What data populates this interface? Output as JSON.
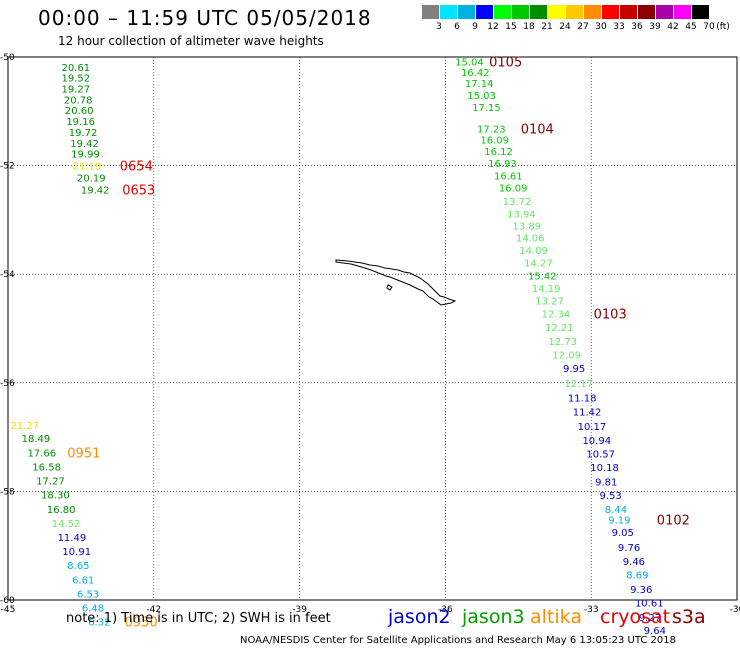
{
  "header": {
    "title": "00:00 – 11:59 UTC 05/05/2018",
    "subtitle": "12 hour collection of altimeter wave heights"
  },
  "colorbar": {
    "labels": [
      "3",
      "6",
      "9",
      "12",
      "15",
      "18",
      "21",
      "24",
      "27",
      "30",
      "33",
      "36",
      "39",
      "42",
      "45",
      "70"
    ],
    "unit": "(ft)",
    "colors": [
      "#808080",
      "#00e5ff",
      "#00b0e0",
      "#0000ff",
      "#00ff00",
      "#00c800",
      "#008c00",
      "#ffff00",
      "#ffc800",
      "#ff8c00",
      "#ff0000",
      "#c80000",
      "#8c0000",
      "#aa00aa",
      "#ff00ff",
      "#000000"
    ]
  },
  "map": {
    "lat_labels": [
      "-50",
      "-52",
      "-54",
      "-56",
      "-58",
      "-60"
    ],
    "lon_labels": [
      "-45",
      "-42",
      "-39",
      "-36",
      "-33",
      "-30"
    ],
    "lat_range": [
      -60,
      -50
    ],
    "lon_range": [
      -45,
      -30
    ],
    "grid": "dotted"
  },
  "tracks": [
    {
      "name": "track-0654-0653",
      "readings": [
        {
          "v": "20.61",
          "c": "#008c00",
          "lon": -43.9,
          "lat": -50.18
        },
        {
          "v": "19.52",
          "c": "#008c00",
          "lon": -43.9,
          "lat": -50.38
        },
        {
          "v": "19.27",
          "c": "#008c00",
          "lon": -43.9,
          "lat": -50.58
        },
        {
          "v": "20.78",
          "c": "#008c00",
          "lon": -43.85,
          "lat": -50.78
        },
        {
          "v": "20.60",
          "c": "#008c00",
          "lon": -43.83,
          "lat": -50.98
        },
        {
          "v": "19.16",
          "c": "#008c00",
          "lon": -43.8,
          "lat": -51.18
        },
        {
          "v": "19.72",
          "c": "#008c00",
          "lon": -43.75,
          "lat": -51.38
        },
        {
          "v": "19.42",
          "c": "#008c00",
          "lon": -43.72,
          "lat": -51.58
        },
        {
          "v": "19.99",
          "c": "#008c00",
          "lon": -43.7,
          "lat": -51.78
        },
        {
          "v": "21.19",
          "c": "#e6e600",
          "lon": -43.67,
          "lat": -52.0
        },
        {
          "v": "20.19",
          "c": "#008c00",
          "lon": -43.58,
          "lat": -52.22
        },
        {
          "v": "19.42",
          "c": "#008c00",
          "lon": -43.5,
          "lat": -52.44
        }
      ],
      "labels": [
        {
          "t": "0654",
          "c": "#e60000",
          "lon": -42.7,
          "lat": -52.0
        },
        {
          "t": "0653",
          "c": "#e60000",
          "lon": -42.65,
          "lat": -52.44
        }
      ]
    },
    {
      "name": "track-0105-0102",
      "readings": [
        {
          "v": "15.04",
          "c": "#00c800",
          "lon": -35.8,
          "lat": -50.08
        },
        {
          "v": "16.42",
          "c": "#00c800",
          "lon": -35.68,
          "lat": -50.28
        },
        {
          "v": "17.14",
          "c": "#00c800",
          "lon": -35.6,
          "lat": -50.48
        },
        {
          "v": "15.03",
          "c": "#00c800",
          "lon": -35.55,
          "lat": -50.7
        },
        {
          "v": "17.15",
          "c": "#00c800",
          "lon": -35.45,
          "lat": -50.92
        },
        {
          "v": "17.23",
          "c": "#00c800",
          "lon": -35.35,
          "lat": -51.32
        },
        {
          "v": "16.09",
          "c": "#00c800",
          "lon": -35.28,
          "lat": -51.52
        },
        {
          "v": "16.12",
          "c": "#00c800",
          "lon": -35.2,
          "lat": -51.73
        },
        {
          "v": "16.93",
          "c": "#00c800",
          "lon": -35.12,
          "lat": -51.95
        },
        {
          "v": "16.61",
          "c": "#00c800",
          "lon": -35.0,
          "lat": -52.18
        },
        {
          "v": "16.09",
          "c": "#00c800",
          "lon": -34.9,
          "lat": -52.4
        },
        {
          "v": "13.72",
          "c": "#66e666",
          "lon": -34.82,
          "lat": -52.65
        },
        {
          "v": "13.94",
          "c": "#66e666",
          "lon": -34.73,
          "lat": -52.88
        },
        {
          "v": "13.89",
          "c": "#66e666",
          "lon": -34.62,
          "lat": -53.1
        },
        {
          "v": "14.06",
          "c": "#66e666",
          "lon": -34.55,
          "lat": -53.32
        },
        {
          "v": "14.09",
          "c": "#66e666",
          "lon": -34.48,
          "lat": -53.55
        },
        {
          "v": "14.27",
          "c": "#66e666",
          "lon": -34.38,
          "lat": -53.78
        },
        {
          "v": "15.42",
          "c": "#00c800",
          "lon": -34.3,
          "lat": -54.02
        },
        {
          "v": "14.19",
          "c": "#66e666",
          "lon": -34.22,
          "lat": -54.25
        },
        {
          "v": "13.27",
          "c": "#66e666",
          "lon": -34.15,
          "lat": -54.48
        },
        {
          "v": "12.34",
          "c": "#66e666",
          "lon": -34.02,
          "lat": -54.72
        },
        {
          "v": "12.21",
          "c": "#66e666",
          "lon": -33.95,
          "lat": -54.97
        },
        {
          "v": "12.73",
          "c": "#66e666",
          "lon": -33.88,
          "lat": -55.23
        },
        {
          "v": "12.09",
          "c": "#66e666",
          "lon": -33.8,
          "lat": -55.48
        },
        {
          "v": "9.95",
          "c": "#0000cc",
          "lon": -33.58,
          "lat": -55.73
        },
        {
          "v": "12.17",
          "c": "#66e666",
          "lon": -33.55,
          "lat": -56.0
        },
        {
          "v": "11.18",
          "c": "#0000cc",
          "lon": -33.48,
          "lat": -56.27
        },
        {
          "v": "11.42",
          "c": "#0000cc",
          "lon": -33.38,
          "lat": -56.53
        },
        {
          "v": "10.17",
          "c": "#0000cc",
          "lon": -33.28,
          "lat": -56.8
        },
        {
          "v": "10.94",
          "c": "#0000cc",
          "lon": -33.18,
          "lat": -57.05
        },
        {
          "v": "10.57",
          "c": "#0000cc",
          "lon": -33.1,
          "lat": -57.3
        },
        {
          "v": "10.18",
          "c": "#0000cc",
          "lon": -33.02,
          "lat": -57.55
        },
        {
          "v": "9.81",
          "c": "#0000cc",
          "lon": -32.92,
          "lat": -57.82
        },
        {
          "v": "9.53",
          "c": "#0000cc",
          "lon": -32.83,
          "lat": -58.07
        },
        {
          "v": "8.44",
          "c": "#00b0e0",
          "lon": -32.72,
          "lat": -58.32
        },
        {
          "v": "9.19",
          "c": "#00b0e0",
          "lon": -32.65,
          "lat": -58.52
        },
        {
          "v": "9.05",
          "c": "#0000cc",
          "lon": -32.58,
          "lat": -58.75
        },
        {
          "v": "9.76",
          "c": "#0000cc",
          "lon": -32.45,
          "lat": -59.02
        },
        {
          "v": "9.46",
          "c": "#0000cc",
          "lon": -32.35,
          "lat": -59.28
        },
        {
          "v": "8.69",
          "c": "#00b0e0",
          "lon": -32.28,
          "lat": -59.53
        },
        {
          "v": "9.36",
          "c": "#0000cc",
          "lon": -32.2,
          "lat": -59.8
        },
        {
          "v": "10.61",
          "c": "#0000cc",
          "lon": -32.1,
          "lat": -60.05
        },
        {
          "v": "9.27",
          "c": "#0000cc",
          "lon": -32.02,
          "lat": -60.31
        },
        {
          "v": "9.64",
          "c": "#0000cc",
          "lon": -31.92,
          "lat": -60.55
        }
      ],
      "labels": [
        {
          "t": "0105",
          "c": "#8c0000",
          "lon": -35.1,
          "lat": -50.08
        },
        {
          "t": "0104",
          "c": "#8c0000",
          "lon": -34.45,
          "lat": -51.32
        },
        {
          "t": "0103",
          "c": "#8c0000",
          "lon": -32.95,
          "lat": -54.72
        },
        {
          "t": "0102",
          "c": "#8c0000",
          "lon": -31.65,
          "lat": -58.52
        }
      ]
    },
    {
      "name": "track-0951-0950",
      "readings": [
        {
          "v": "21.27",
          "c": "#e6e600",
          "lon": -44.95,
          "lat": -56.78
        },
        {
          "v": "18.49",
          "c": "#008c00",
          "lon": -44.72,
          "lat": -57.02
        },
        {
          "v": "17.66",
          "c": "#008c00",
          "lon": -44.6,
          "lat": -57.28
        },
        {
          "v": "16.58",
          "c": "#008c00",
          "lon": -44.5,
          "lat": -57.54
        },
        {
          "v": "17.27",
          "c": "#008c00",
          "lon": -44.42,
          "lat": -57.8
        },
        {
          "v": "18.30",
          "c": "#008c00",
          "lon": -44.32,
          "lat": -58.06
        },
        {
          "v": "16.80",
          "c": "#008c00",
          "lon": -44.2,
          "lat": -58.32
        },
        {
          "v": "14.52",
          "c": "#66e666",
          "lon": -44.1,
          "lat": -58.58
        },
        {
          "v": "11.49",
          "c": "#0000cc",
          "lon": -43.98,
          "lat": -58.84
        },
        {
          "v": "10.91",
          "c": "#0000cc",
          "lon": -43.88,
          "lat": -59.1
        },
        {
          "v": "8.65",
          "c": "#00b0e0",
          "lon": -43.78,
          "lat": -59.36
        },
        {
          "v": "6.61",
          "c": "#00b0e0",
          "lon": -43.68,
          "lat": -59.62
        },
        {
          "v": "6.53",
          "c": "#00b0e0",
          "lon": -43.58,
          "lat": -59.88
        },
        {
          "v": "6.48",
          "c": "#00b0e0",
          "lon": -43.48,
          "lat": -60.14
        },
        {
          "v": "6.32",
          "c": "#00b0e0",
          "lon": -43.35,
          "lat": -60.4
        }
      ],
      "labels": [
        {
          "t": "0951",
          "c": "#ff8c00",
          "lon": -43.78,
          "lat": -57.28
        },
        {
          "t": "0950",
          "c": "#ff8c00",
          "lon": -42.6,
          "lat": -60.4
        }
      ]
    }
  ],
  "note": "note:  1) Time is in UTC;  2) SWH is in feet",
  "satellites": [
    {
      "name": "jason2",
      "color": "#0000cc"
    },
    {
      "name": "jason3",
      "color": "#00a000"
    },
    {
      "name": "altika",
      "color": "#ff8c00"
    },
    {
      "name": "cryosat",
      "color": "#e60000"
    },
    {
      "name": "s3a",
      "color": "#8c0000"
    }
  ],
  "footer": "NOAA/NESDIS Center for Satellite Applications and Research    May  6 13:05:23 UTC 2018"
}
